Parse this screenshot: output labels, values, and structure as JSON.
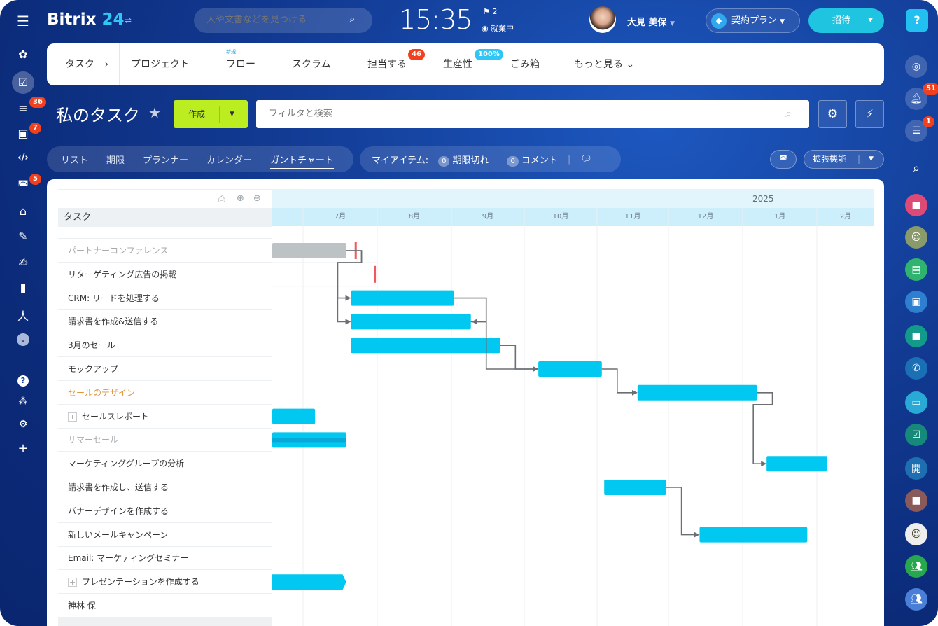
{
  "header": {
    "logo_text": "Bitrix",
    "logo_num": "24",
    "search_placeholder": "人や文書などを見つける",
    "clock": "15:35",
    "flag_count": "2",
    "work_status": "就業中",
    "user_name": "大見 美保",
    "plan_label": "契約プラン",
    "invite_label": "招待",
    "help_label": "?"
  },
  "left_sidebar": {
    "badges": {
      "feed": "36",
      "contacts": "7",
      "bots": "5"
    }
  },
  "right_sidebar": {
    "badges": {
      "notifications": "51",
      "chat": "1"
    },
    "open_label": "開"
  },
  "topnav": {
    "items": [
      {
        "label": "タスク"
      },
      {
        "label": "プロジェクト"
      },
      {
        "label": "フロー",
        "tag": "新規"
      },
      {
        "label": "スクラム"
      },
      {
        "label": "担当する",
        "badge": "46"
      },
      {
        "label": "生産性",
        "badge": "100%"
      },
      {
        "label": "ごみ箱"
      },
      {
        "label": "もっと見る"
      }
    ]
  },
  "toolbar": {
    "title": "私のタスク",
    "create_label": "作成",
    "filter_placeholder": "フィルタと検索"
  },
  "views": {
    "tabs": [
      "リスト",
      "期限",
      "プランナー",
      "カレンダー",
      "ガントチャート"
    ],
    "active": "ガントチャート"
  },
  "my_items": {
    "label": "マイアイテム:",
    "overdue_count": "0",
    "overdue_label": "期限切れ",
    "comments_count": "0",
    "comments_label": "コメント"
  },
  "extensions_label": "拡張機能",
  "gantt": {
    "task_header": "タスク",
    "year": "2025",
    "months": [
      "7月",
      "8月",
      "9月",
      "10月",
      "11月",
      "12月",
      "1月",
      "2月"
    ],
    "bar_color": "#00c8f0",
    "tasks": [
      {
        "name": "パートナーコンファレンス",
        "style": "done",
        "start": "2024-06-18",
        "end": "2024-07-19",
        "deadline": "2024-07-23"
      },
      {
        "name": "リターゲティング広告の掲載",
        "style": "normal",
        "deadline": "2024-07-31"
      },
      {
        "name": "CRM: リードを処理する",
        "style": "normal",
        "start": "2024-07-21",
        "end": "2024-09-02"
      },
      {
        "name": "請求書を作成&送信する",
        "style": "normal",
        "start": "2024-07-21",
        "end": "2024-09-09"
      },
      {
        "name": "3月のセール",
        "style": "normal",
        "start": "2024-07-21",
        "end": "2024-09-21"
      },
      {
        "name": "モックアップ",
        "style": "normal",
        "start": "2024-10-07",
        "end": "2024-11-03"
      },
      {
        "name": "セールのデザイン",
        "style": "orange",
        "start": "2024-11-18",
        "end": "2025-01-07"
      },
      {
        "name": "セールスレポート",
        "style": "group",
        "start": "2024-06-18",
        "end": "2024-07-06"
      },
      {
        "name": "サマーセール",
        "style": "muted",
        "start": "2024-06-18",
        "end": "2024-07-19"
      },
      {
        "name": "マーケティンググループの分析",
        "style": "normal",
        "start": "2025-01-11",
        "end": "2025-02-05"
      },
      {
        "name": "請求書を作成し、送信する",
        "style": "normal",
        "start": "2024-11-04",
        "end": "2024-11-30"
      },
      {
        "name": "バナーデザインを作成する",
        "style": "normal"
      },
      {
        "name": "新しいメールキャンペーン",
        "style": "normal",
        "start": "2024-12-14",
        "end": "2025-01-28"
      },
      {
        "name": "Email: マーケティングセミナー",
        "style": "normal"
      },
      {
        "name": "プレゼンテーションを作成する",
        "style": "group",
        "start": "2024-06-18",
        "end": "2024-07-19"
      },
      {
        "name": "神林 保",
        "style": "normal"
      }
    ],
    "links": [
      {
        "from": 0,
        "to": 2,
        "type": "FS"
      },
      {
        "from": 0,
        "to": 3,
        "type": "FS"
      },
      {
        "from": 2,
        "to": 3,
        "type": "FF"
      },
      {
        "from": 3,
        "to": 5,
        "type": "FS"
      },
      {
        "from": 4,
        "to": 5,
        "type": "FS"
      },
      {
        "from": 5,
        "to": 6,
        "type": "FS"
      },
      {
        "from": 6,
        "to": 9,
        "type": "FS"
      },
      {
        "from": 10,
        "to": 12,
        "type": "FS"
      }
    ]
  }
}
